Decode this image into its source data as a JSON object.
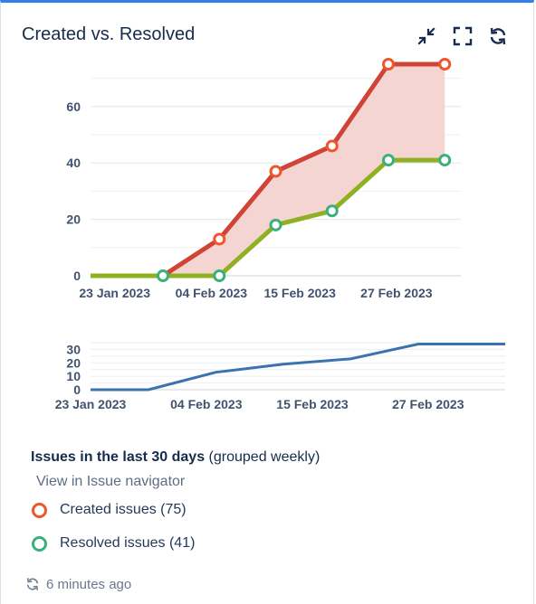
{
  "gadget": {
    "title": "Created vs. Resolved",
    "icons": [
      "minimize-icon",
      "fullscreen-icon",
      "refresh-icon"
    ]
  },
  "colors": {
    "created": "#d04437",
    "created_fill": "#f5d5d2",
    "resolved": "#8eb021",
    "resolved_marker": "#3bb07a",
    "overview_line": "#3b73af",
    "created_marker": "#f0552b"
  },
  "chart_data": [
    {
      "type": "area",
      "title": "",
      "xlabel": "",
      "ylabel": "",
      "x": [
        "2023-01-22",
        "2023-01-29",
        "2023-02-05",
        "2023-02-12",
        "2023-02-19",
        "2023-02-26",
        "2023-03-05"
      ],
      "x_tick_labels": [
        "23 Jan 2023",
        "04 Feb 2023",
        "15 Feb 2023",
        "27 Feb 2023"
      ],
      "x_ticks": [
        "2023-01-23",
        "2023-02-04",
        "2023-02-15",
        "2023-02-27"
      ],
      "y_ticks": [
        0,
        20,
        40,
        60
      ],
      "ylim": [
        0,
        75
      ],
      "grid": true,
      "series": [
        {
          "name": "Created issues",
          "values": [
            null,
            0,
            13,
            37,
            46,
            75,
            75
          ]
        },
        {
          "name": "Resolved issues",
          "values": [
            null,
            0,
            0,
            18,
            23,
            41,
            41
          ]
        }
      ],
      "leading_segment": {
        "from": "2023-01-20",
        "value": 0
      }
    },
    {
      "type": "line",
      "title": "",
      "x": [
        "2023-01-23",
        "2023-01-29",
        "2023-02-05",
        "2023-02-12",
        "2023-02-19",
        "2023-02-26",
        "2023-03-05"
      ],
      "x_tick_labels": [
        "23 Jan 2023",
        "04 Feb 2023",
        "15 Feb 2023",
        "27 Feb 2023"
      ],
      "x_ticks": [
        "2023-01-23",
        "2023-02-04",
        "2023-02-15",
        "2023-02-27"
      ],
      "y_ticks": [
        0,
        10,
        20,
        30
      ],
      "ylim": [
        0,
        35
      ],
      "grid": true,
      "series": [
        {
          "values": [
            0,
            0,
            13,
            19,
            23,
            34,
            34
          ]
        }
      ]
    }
  ],
  "legend": {
    "heading_strong": "Issues in the last 30 days",
    "heading_muted": "(grouped weekly)",
    "link": "View in Issue navigator",
    "items": [
      {
        "label": "Created issues (75)"
      },
      {
        "label": "Resolved issues (41)"
      }
    ]
  },
  "footer": {
    "updated": "6 minutes ago"
  }
}
